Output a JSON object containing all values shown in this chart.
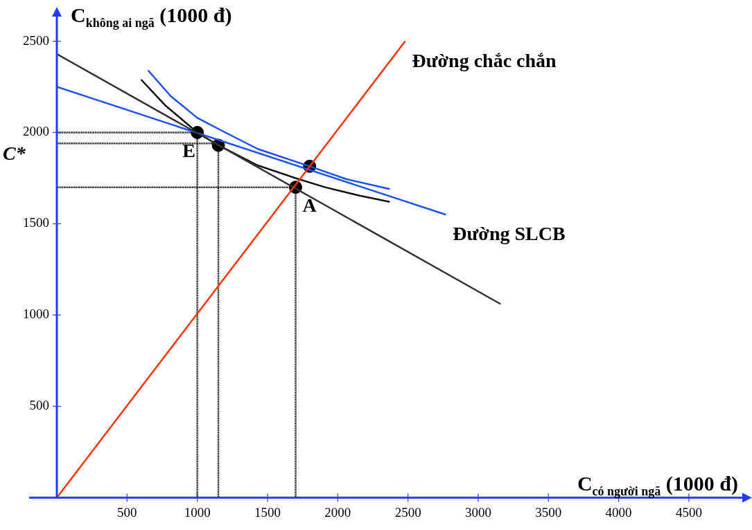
{
  "chart_data": {
    "type": "line",
    "xlabel": "C$_{có người ngã}$ (1000 đ)",
    "ylabel": "C$_{không ai ngã}$ (1000 đ)",
    "xlim": [
      0,
      4900
    ],
    "ylim": [
      0,
      2650
    ],
    "xticks": [
      500,
      1000,
      1500,
      2000,
      2500,
      3000,
      3500,
      4000,
      4500
    ],
    "yticks": [
      500,
      1000,
      1500,
      2000,
      2500
    ],
    "legend": false,
    "grid": false,
    "series": [
      {
        "type": "line",
        "name": "Đường chắc chắn",
        "color": "#ff3300",
        "x": [
          0,
          2480
        ],
        "values": [
          0,
          2500
        ]
      },
      {
        "type": "line",
        "color": "#333333",
        "x": [
          0,
          3160
        ],
        "values": [
          2430,
          1060
        ]
      },
      {
        "type": "line",
        "name": "Đường SLCB",
        "color": "#1a53ff",
        "x": [
          0,
          2770
        ],
        "values": [
          2250,
          1550
        ]
      },
      {
        "type": "line",
        "color": "#1a4fff",
        "x": [
          650,
          810,
          1000,
          1200,
          1430,
          1800,
          2060,
          2370
        ],
        "values": [
          2340,
          2200,
          2080,
          2000,
          1910,
          1815,
          1745,
          1690
        ]
      },
      {
        "type": "line",
        "color": "#111111",
        "x": [
          600,
          770,
          1000,
          1150,
          1430,
          1700,
          1910,
          2150,
          2370
        ],
        "values": [
          2290,
          2150,
          2000,
          1930,
          1820,
          1750,
          1700,
          1655,
          1620
        ]
      },
      {
        "type": "line",
        "color": "#000000",
        "line_style": "dotted",
        "x": [
          0,
          1000,
          1000
        ],
        "values": [
          2000,
          2000,
          0
        ]
      },
      {
        "type": "line",
        "color": "#000000",
        "line_style": "dotted",
        "x": [
          0,
          1150,
          1150
        ],
        "values": [
          1940,
          1940,
          0
        ]
      },
      {
        "type": "line",
        "color": "#000000",
        "line_style": "dotted",
        "x": [
          0,
          1700,
          1700
        ],
        "values": [
          1700,
          1700,
          0
        ]
      },
      {
        "type": "scatter",
        "marker": "circle",
        "color": "#000000",
        "x": [
          1000,
          1150,
          1700,
          1800
        ],
        "values": [
          2000,
          1930,
          1700,
          1815
        ]
      }
    ],
    "annotations": [
      {
        "text": "E",
        "x": 1000,
        "y": 2000
      },
      {
        "text": "A",
        "x": 1700,
        "y": 1700
      },
      {
        "text": "C*",
        "x": 0,
        "y": 1940
      }
    ]
  }
}
